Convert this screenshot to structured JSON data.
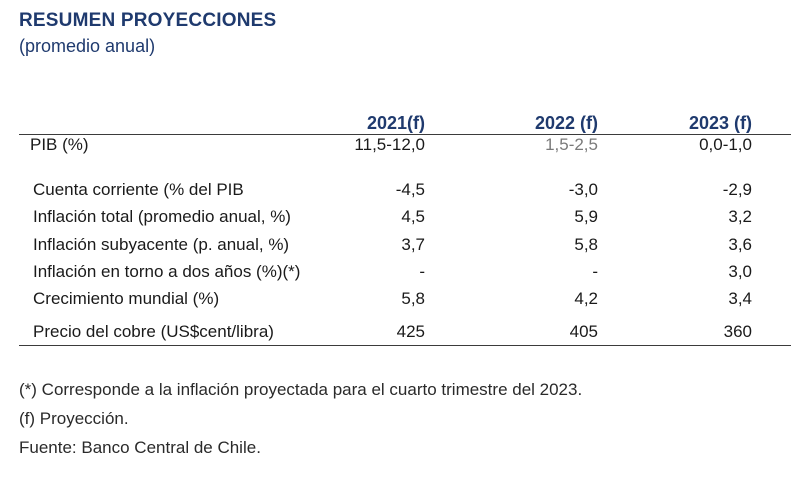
{
  "header": {
    "title": "RESUMEN PROYECCIONES",
    "subtitle": "(promedio anual)"
  },
  "columns": [
    "2021(f)",
    "2022 (f)",
    "2023 (f)"
  ],
  "rows": [
    {
      "label": "PIB (%)",
      "values": [
        "11,5-12,0",
        "1,5-2,5",
        "0,0-1,0"
      ]
    },
    {
      "label": "Cuenta corriente (% del PIB",
      "values": [
        "-4,5",
        "-3,0",
        "-2,9"
      ]
    },
    {
      "label": "Inflación total (promedio anual, %)",
      "values": [
        "4,5",
        "5,9",
        "3,2"
      ]
    },
    {
      "label": "Inflación subyacente (p. anual, %)",
      "values": [
        "3,7",
        "5,8",
        "3,6"
      ]
    },
    {
      "label": "Inflación en torno a dos años (%)(*)",
      "values": [
        "-",
        "-",
        "3,0"
      ]
    },
    {
      "label": "Crecimiento mundial (%)",
      "values": [
        "5,8",
        "4,2",
        "3,4"
      ]
    },
    {
      "label": "Precio del cobre (US$cent/libra)",
      "values": [
        "425",
        "405",
        "360"
      ]
    }
  ],
  "notes": [
    "(*) Corresponde a la inflación proyectada para el cuarto trimestre del 2023.",
    "(f) Proyección.",
    "Fuente: Banco Central de Chile."
  ],
  "colors": {
    "heading": "#1f3a6e",
    "muted": "#7a7a7a"
  }
}
